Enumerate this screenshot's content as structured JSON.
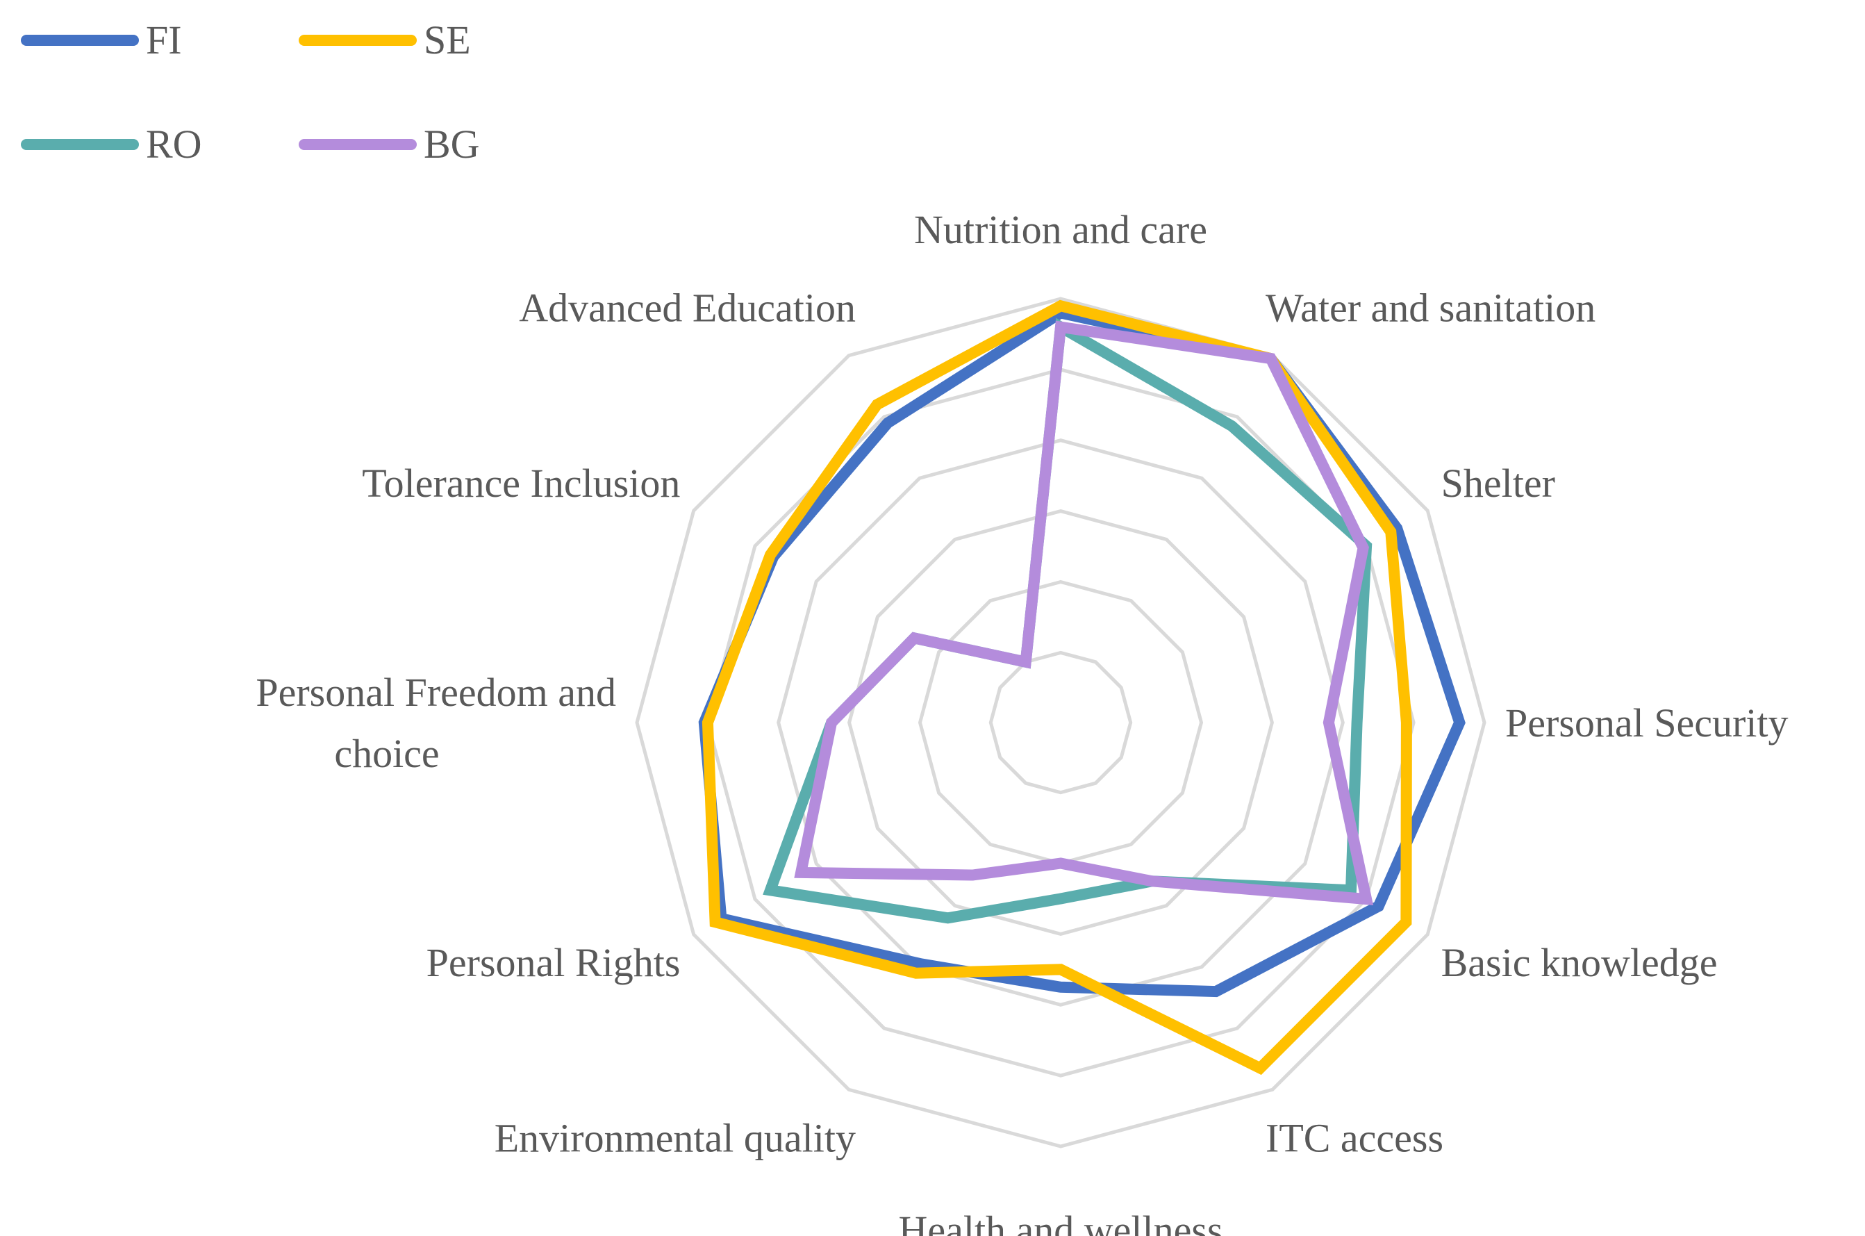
{
  "chart_data": {
    "type": "radar",
    "categories": [
      "Nutrition and care",
      "Water and sanitation",
      "Shelter",
      "Personal Security",
      "Basic knowledge",
      "ITC access",
      "Health and wellness",
      "Environmental quality",
      "Personal Rights",
      "Personal Freedom and choice",
      "Tolerance Inclusion",
      "Advanced Education"
    ],
    "category_lines": [
      [
        "Nutrition and care"
      ],
      [
        "Water and sanitation"
      ],
      [
        "Shelter"
      ],
      [
        "Personal Security"
      ],
      [
        "Basic knowledge"
      ],
      [
        "ITC access"
      ],
      [
        "Health and wellness"
      ],
      [
        "Environmental quality"
      ],
      [
        "Personal Rights"
      ],
      [
        "Personal Freedom and",
        "choice"
      ],
      [
        "Tolerance Inclusion"
      ],
      [
        "Advanced Education"
      ]
    ],
    "rlim": [
      0,
      100
    ],
    "rings": 6,
    "grid": true,
    "legend_position": "top-left",
    "series": [
      {
        "name": "FI",
        "color": "#4472C4",
        "values": [
          96,
          99,
          90,
          93,
          84,
          68,
          55,
          59,
          91,
          81,
          74,
          78
        ]
      },
      {
        "name": "SE",
        "color": "#FFC000",
        "values": [
          98,
          99,
          88,
          78,
          93,
          93,
          50,
          62,
          93,
          80,
          75,
          84
        ]
      },
      {
        "name": "RO",
        "color": "#5AADAD",
        "values": [
          92,
          77,
          80,
          64,
          75,
          32,
          30,
          44,
          75,
          45,
          28,
          0
        ]
      },
      {
        "name": "BG",
        "color": "#B48CDC",
        "values": [
          92,
          99,
          79,
          56,
          80,
          32,
          20,
          30,
          65,
          45,
          28,
          0
        ]
      }
    ]
  }
}
